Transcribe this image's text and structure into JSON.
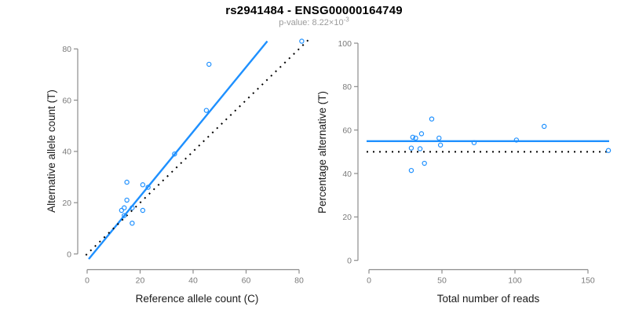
{
  "header": {
    "title": "rs2941484 - ENSG00000164749",
    "pvalue_text": "p-value: 8.22×10",
    "pvalue_exponent": "-3"
  },
  "colors": {
    "accent_blue": "#1E90FF",
    "dotted_line_black": "#000000",
    "axis_gray": "#8C8C8C",
    "tick_label_gray": "#7A7A7A",
    "axis_title_dark": "#1A1A1A",
    "title_black": "#000000",
    "subtitle_gray": "#9B9B9B",
    "background": "#FFFFFF"
  },
  "chart_data": [
    {
      "name": "ref-vs-alt-scatter",
      "type": "scatter",
      "xlabel": "Reference allele count (C)",
      "ylabel": "Alternative allele count (T)",
      "xlim": [
        0,
        80
      ],
      "ylim": [
        0,
        80
      ],
      "xticks": [
        0,
        20,
        40,
        60,
        80
      ],
      "yticks": [
        0,
        20,
        40,
        60,
        80
      ],
      "grid": false,
      "legend": null,
      "marker": "open-circle",
      "points": [
        [
          13,
          17
        ],
        [
          14,
          15
        ],
        [
          14,
          18
        ],
        [
          15,
          21
        ],
        [
          15,
          28
        ],
        [
          17,
          12
        ],
        [
          17,
          18
        ],
        [
          21,
          17
        ],
        [
          21,
          27
        ],
        [
          23,
          26
        ],
        [
          33,
          39
        ],
        [
          45,
          56
        ],
        [
          46,
          74
        ],
        [
          81,
          83
        ]
      ],
      "lines": [
        {
          "name": "fit",
          "style": "solid",
          "x1": 0.6,
          "y1": -2,
          "x2": 68,
          "y2": 83
        },
        {
          "name": "identity",
          "style": "dotted",
          "x1": -0.5,
          "y1": -0.5,
          "x2": 84,
          "y2": 84
        }
      ]
    },
    {
      "name": "reads-vs-percentage-scatter",
      "type": "scatter",
      "xlabel": "Total number of reads",
      "ylabel": "Percentage alternative (T)",
      "xlim": [
        0,
        150
      ],
      "ylim": [
        0,
        100
      ],
      "xticks": [
        0,
        50,
        100,
        150
      ],
      "yticks": [
        0,
        20,
        40,
        60,
        80,
        100
      ],
      "grid": false,
      "legend": null,
      "marker": "open-circle",
      "points": [
        [
          29,
          41.4
        ],
        [
          29,
          51.7
        ],
        [
          30,
          56.7
        ],
        [
          32,
          56.3
        ],
        [
          35,
          51.4
        ],
        [
          36,
          58.3
        ],
        [
          38,
          44.7
        ],
        [
          43,
          65.1
        ],
        [
          48,
          56.3
        ],
        [
          49,
          53.1
        ],
        [
          72,
          54.2
        ],
        [
          101,
          55.4
        ],
        [
          120,
          61.7
        ],
        [
          164,
          50.6
        ]
      ],
      "lines": [
        {
          "name": "mean-percentage",
          "style": "solid",
          "y": 54.9
        },
        {
          "name": "expected-50",
          "style": "dotted",
          "y": 50
        }
      ]
    }
  ]
}
